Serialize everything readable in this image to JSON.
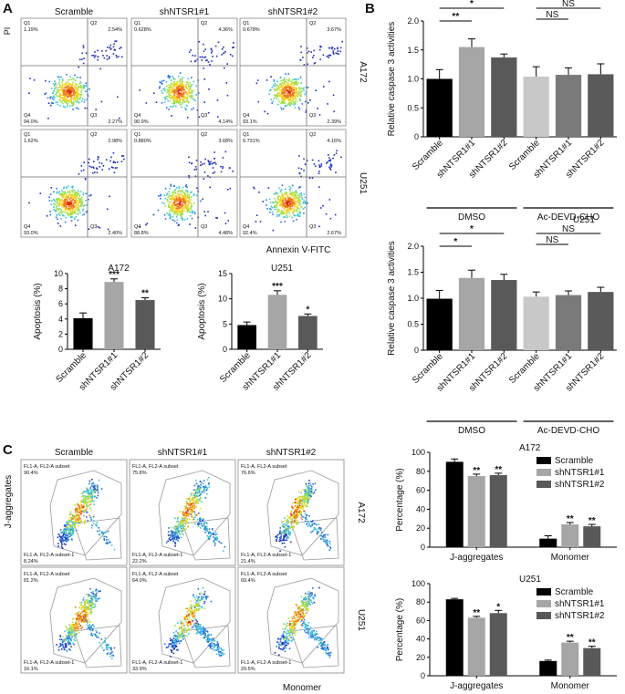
{
  "panel_letters": {
    "a": "A",
    "b": "B",
    "c": "C"
  },
  "flow_a": {
    "y_axis_label": "PI",
    "x_axis_label": "Annexin V-FITC",
    "columns": [
      "Scramble",
      "shNTSR1#1",
      "shNTSR1#2"
    ],
    "rows": [
      "A172",
      "U251"
    ],
    "quadrants": [
      [
        {
          "q1": "Q1\n1.19%",
          "q2": "Q2\n2.54%",
          "q3": "Q3\n2.27%",
          "q4": "Q4\n94.0%"
        },
        {
          "q1": "Q1\n0.628%",
          "q2": "Q2\n4.36%",
          "q3": "Q3\n4.14%",
          "q4": "Q4\n90.9%"
        },
        {
          "q1": "Q1\n0.678%",
          "q2": "Q2\n3.67%",
          "q3": "Q3\n2.39%",
          "q4": "Q4\n93.1%"
        }
      ],
      [
        {
          "q1": "Q1\n1.62%",
          "q2": "Q2\n2.98%",
          "q3": "Q3\n2.40%",
          "q4": "Q4\n93.0%"
        },
        {
          "q1": "Q1\n0.880%",
          "q2": "Q2\n3.68%",
          "q3": "Q3\n4.48%",
          "q4": "Q4\n88.8%"
        },
        {
          "q1": "Q1\n0.731%",
          "q2": "Q2\n4.16%",
          "q3": "Q3\n2.67%",
          "q4": "Q4\n92.4%"
        }
      ]
    ]
  },
  "flow_c": {
    "y_axis_label": "J-aggregates",
    "x_axis_label": "Monomer",
    "columns": [
      "Scramble",
      "shNTSR1#1",
      "shNTSR1#2"
    ],
    "rows": [
      "A172",
      "U251"
    ],
    "upper_gate_label": "FL1-A, FL2-A subset",
    "lower_gate_label": "FL1-A, FL2-A subset-1",
    "gates": [
      [
        {
          "upper": "90.4%",
          "lower": "8.24%"
        },
        {
          "upper": "75.8%",
          "lower": "22.2%"
        },
        {
          "upper": "76.6%",
          "lower": "21.4%"
        }
      ],
      [
        {
          "upper": "81.2%",
          "lower": "16.1%"
        },
        {
          "upper": "64.0%",
          "lower": "33.9%"
        },
        {
          "upper": "69.4%",
          "lower": "29.5%"
        }
      ]
    ]
  },
  "chart_data": [
    {
      "id": "apoptosis_a172",
      "type": "bar",
      "title": "A172",
      "ylabel": "Apoptosis (%)",
      "ylim": [
        0,
        10
      ],
      "yticks": [
        0,
        2,
        4,
        6,
        8,
        10
      ],
      "categories": [
        "Scramble",
        "shNTSR1#1",
        "shNTSR1#2"
      ],
      "values": [
        4.1,
        8.9,
        6.5
      ],
      "errors": [
        0.7,
        0.4,
        0.3
      ],
      "significance": [
        "",
        "***",
        "**"
      ],
      "colors": [
        "#000000",
        "#a6a6a6",
        "#595959"
      ]
    },
    {
      "id": "apoptosis_u251",
      "type": "bar",
      "title": "U251",
      "ylabel": "Apoptosis (%)",
      "ylim": [
        0,
        15
      ],
      "yticks": [
        0,
        5,
        10,
        15
      ],
      "categories": [
        "Scramble",
        "shNTSR1#1",
        "shNTSR1#2"
      ],
      "values": [
        4.8,
        10.8,
        6.6
      ],
      "errors": [
        0.6,
        0.8,
        0.4
      ],
      "significance": [
        "",
        "***",
        "*"
      ],
      "colors": [
        "#000000",
        "#a6a6a6",
        "#595959"
      ]
    },
    {
      "id": "caspase_a172",
      "type": "bar",
      "title": "A172",
      "ylabel": "Relative caspase 3 activities",
      "ylim": [
        0,
        2.0
      ],
      "yticks": [
        0,
        0.5,
        1.0,
        1.5,
        2.0
      ],
      "ytick_labels": [
        "0",
        "0.5",
        "1.0",
        "1.5",
        "2.0"
      ],
      "categories": [
        "Scramble",
        "shNTSR1#1",
        "shNTSR1#2",
        "Scramble",
        "shNTSR1#1",
        "shNTSR1#2"
      ],
      "values": [
        1.0,
        1.55,
        1.37,
        1.04,
        1.07,
        1.08
      ],
      "errors": [
        0.16,
        0.14,
        0.06,
        0.17,
        0.12,
        0.18
      ],
      "colors": [
        "#000000",
        "#a6a6a6",
        "#595959",
        "#c8c8c8",
        "#7a7a7a",
        "#5a5a5a"
      ],
      "groups": [
        "DMSO",
        "Ac-DEVD-CHO"
      ],
      "comparisons": [
        {
          "from": 0,
          "to": 2,
          "label": "*"
        },
        {
          "from": 0,
          "to": 1,
          "label": "**"
        },
        {
          "from": 3,
          "to": 5,
          "label": "NS"
        },
        {
          "from": 3,
          "to": 4,
          "label": "NS"
        }
      ]
    },
    {
      "id": "caspase_u251",
      "type": "bar",
      "title": "U251",
      "ylabel": "Relative caspase 3 activities",
      "ylim": [
        0,
        2.0
      ],
      "yticks": [
        0,
        0.5,
        1.0,
        1.5,
        2.0
      ],
      "ytick_labels": [
        "0",
        "0.5",
        "1.0",
        "1.5",
        "2.0"
      ],
      "categories": [
        "Scramble",
        "shNTSR1#1",
        "shNTSR1#2",
        "Scramble",
        "shNTSR1#1",
        "shNTSR1#2"
      ],
      "values": [
        0.99,
        1.39,
        1.35,
        1.03,
        1.06,
        1.12
      ],
      "errors": [
        0.16,
        0.15,
        0.11,
        0.09,
        0.08,
        0.09
      ],
      "colors": [
        "#000000",
        "#a6a6a6",
        "#595959",
        "#c8c8c8",
        "#7a7a7a",
        "#5a5a5a"
      ],
      "groups": [
        "DMSO",
        "Ac-DEVD-CHO"
      ],
      "comparisons": [
        {
          "from": 0,
          "to": 2,
          "label": "*"
        },
        {
          "from": 0,
          "to": 1,
          "label": "*"
        },
        {
          "from": 3,
          "to": 5,
          "label": "NS"
        },
        {
          "from": 3,
          "to": 4,
          "label": "NS"
        }
      ]
    },
    {
      "id": "jc1_a172",
      "type": "bar",
      "title": "A172",
      "ylabel": "Percentage (%)",
      "ylim": [
        0,
        100
      ],
      "yticks": [
        0,
        20,
        40,
        60,
        80,
        100
      ],
      "categories": [
        "J-aggregates",
        "Monomer"
      ],
      "series": [
        {
          "name": "Scramble",
          "values": [
            90,
            9
          ],
          "errors": [
            3,
            3
          ],
          "sig": [
            "",
            ""
          ]
        },
        {
          "name": "shNTSR1#1",
          "values": [
            75,
            24
          ],
          "errors": [
            2,
            2
          ],
          "sig": [
            "**",
            "**"
          ]
        },
        {
          "name": "shNTSR1#2",
          "values": [
            76,
            22
          ],
          "errors": [
            2,
            2
          ],
          "sig": [
            "**",
            "**"
          ]
        }
      ],
      "colors": [
        "#000000",
        "#a6a6a6",
        "#595959"
      ]
    },
    {
      "id": "jc1_u251",
      "type": "bar",
      "title": "U251",
      "ylabel": "Percentage (%)",
      "ylim": [
        0,
        100
      ],
      "yticks": [
        0,
        20,
        40,
        60,
        80,
        100
      ],
      "categories": [
        "J-aggregates",
        "Monomer"
      ],
      "series": [
        {
          "name": "Scramble",
          "values": [
            83,
            16
          ],
          "errors": [
            1,
            1
          ],
          "sig": [
            "",
            ""
          ]
        },
        {
          "name": "shNTSR1#1",
          "values": [
            63,
            36
          ],
          "errors": [
            1.5,
            1.5
          ],
          "sig": [
            "**",
            "**"
          ]
        },
        {
          "name": "shNTSR1#2",
          "values": [
            68,
            30
          ],
          "errors": [
            3,
            2
          ],
          "sig": [
            "*",
            "**"
          ]
        }
      ],
      "colors": [
        "#000000",
        "#a6a6a6",
        "#595959"
      ]
    }
  ]
}
